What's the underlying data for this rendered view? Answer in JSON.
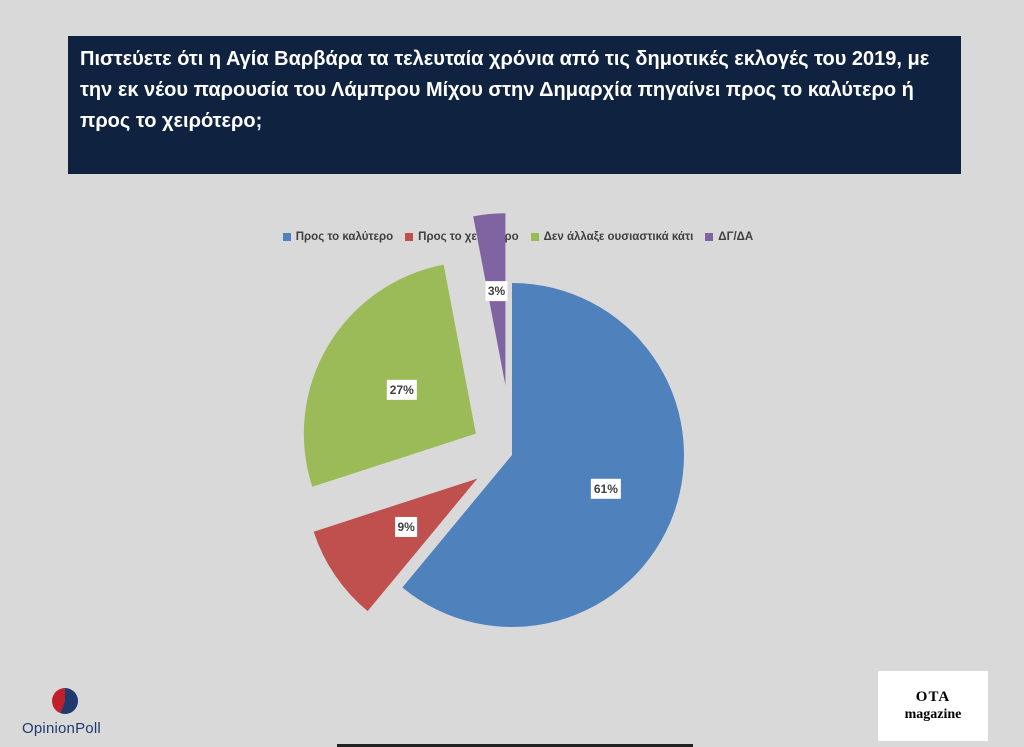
{
  "title": "Πιστεύετε ότι η Αγία Βαρβάρα τα τελευταία χρόνια από τις δημοτικές εκλογές του 2019, με την εκ νέου παρουσία του Λάμπρου Μίχου στην Δημαρχία πηγαίνει προς το καλύτερο ή προς το χειρότερο;",
  "chart_data": {
    "type": "pie",
    "title": "",
    "legend_position": "top",
    "slices": [
      {
        "label": "Προς το καλύτερο",
        "value": 61,
        "data_label": "61%",
        "color": "#4f81bd"
      },
      {
        "label": "Προς το χειρότερο",
        "value": 9,
        "data_label": "9%",
        "color": "#c0504d"
      },
      {
        "label": "Δεν άλλαξε ουσιαστικά κάτι",
        "value": 27,
        "data_label": "27%",
        "color": "#9bbb59"
      },
      {
        "label": "ΔΓ/ΔΑ",
        "value": 3,
        "data_label": "3%",
        "color": "#8064a2"
      }
    ]
  },
  "logos": {
    "left": "OpinionPoll",
    "right_line1": "OTA",
    "right_line2": "magazine"
  }
}
